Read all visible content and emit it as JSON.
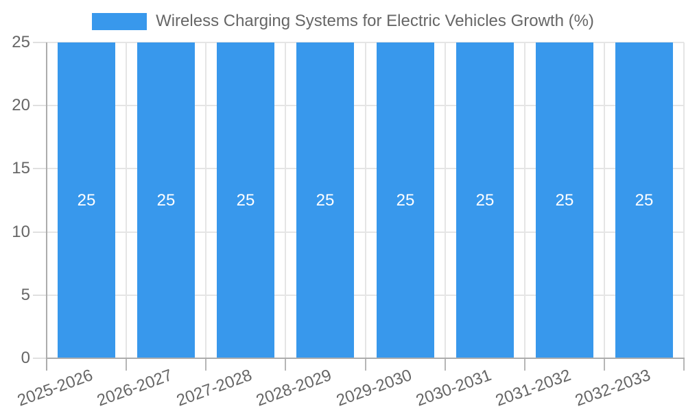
{
  "legend": {
    "label": "Wireless Charging Systems for Electric Vehicles Growth (%)"
  },
  "chart_data": {
    "type": "bar",
    "title": "Wireless Charging Systems for Electric Vehicles Growth (%)",
    "categories": [
      "2025-2026",
      "2026-2027",
      "2027-2028",
      "2028-2029",
      "2029-2030",
      "2030-2031",
      "2031-2032",
      "2032-2033"
    ],
    "values": [
      25,
      25,
      25,
      25,
      25,
      25,
      25,
      25
    ],
    "bar_value_labels": [
      "25",
      "25",
      "25",
      "25",
      "25",
      "25",
      "25",
      "25"
    ],
    "xlabel": "",
    "ylabel": "",
    "ylim": [
      0,
      25
    ],
    "yticks": [
      0,
      5,
      10,
      15,
      20,
      25
    ],
    "grid": true,
    "legend_position": "top",
    "x_label_rotation_deg": -20,
    "colors": {
      "bar": "#3898EC",
      "bar_value_label": "#FFFFFF",
      "axis_text": "#666666",
      "grid_line": "#E5E5E5",
      "y_tick_mark": "#E0E0E0",
      "x_tick_mark": "#B6B6B6",
      "axis_line": "#ACACAC",
      "background": "#FFFFFF"
    }
  }
}
